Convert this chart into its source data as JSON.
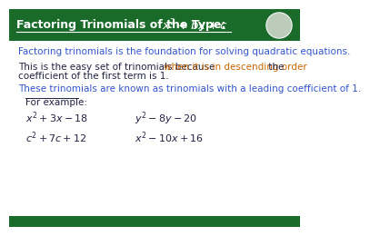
{
  "bg_color": "#ffffff",
  "header_bg": "#1a6b2a",
  "footer_bg": "#1a6b2a",
  "line1": "Factoring trinomials is the foundation for solving quadratic equations.",
  "line2a": "This is the easy set of trinomials because ",
  "line2b": "when it is in descending order",
  "line2c": " the",
  "line2d": "coefficient of the first term is 1.",
  "line3": "These trinomials are known as trinomials with a leading coefficient of 1.",
  "for_example": "For example:",
  "blue_color": "#3355cc",
  "orange_color": "#cc6600",
  "dark_color": "#222244",
  "header_font_size": 9,
  "body_font_size": 7.5,
  "example_font_size": 8
}
